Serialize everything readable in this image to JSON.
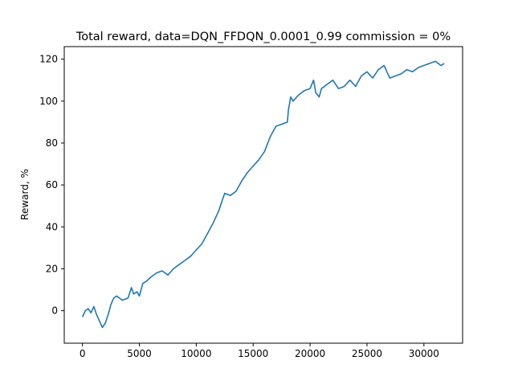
{
  "chart_data": {
    "type": "line",
    "title": "Total reward, data=DQN_FFDQN_0.0001_0.99 commission = 0%",
    "xlabel": "",
    "ylabel": "Reward, %",
    "xlim": [
      -1600,
      33400
    ],
    "ylim": [
      -15.5,
      126
    ],
    "xticks": [
      0,
      5000,
      10000,
      15000,
      20000,
      25000,
      30000
    ],
    "xtick_labels": [
      "0",
      "5000",
      "10000",
      "15000",
      "20000",
      "25000",
      "30000"
    ],
    "yticks": [
      0,
      20,
      40,
      60,
      80,
      100,
      120
    ],
    "ytick_labels": [
      "0",
      "20",
      "40",
      "60",
      "80",
      "100",
      "120"
    ],
    "grid": false,
    "legend": "none",
    "series": [
      {
        "color": "#1f77b4",
        "x": [
          0,
          250,
          500,
          750,
          1000,
          1250,
          1500,
          1750,
          2000,
          2250,
          2500,
          2750,
          3000,
          3500,
          4000,
          4300,
          4500,
          4800,
          5000,
          5300,
          5600,
          6000,
          6500,
          7000,
          7500,
          8000,
          8500,
          9000,
          9500,
          10000,
          10500,
          11000,
          11500,
          12000,
          12300,
          12500,
          13000,
          13500,
          14000,
          14500,
          15000,
          15500,
          16000,
          16500,
          17000,
          17500,
          18000,
          18100,
          18300,
          18500,
          19000,
          19500,
          20000,
          20300,
          20500,
          20800,
          21000,
          21500,
          22000,
          22500,
          23000,
          23500,
          24000,
          24500,
          25000,
          25500,
          26000,
          26500,
          27000,
          27500,
          28000,
          28500,
          29000,
          29500,
          30000,
          30500,
          31000,
          31500,
          31800
        ],
        "y": [
          -3,
          0,
          1,
          -1,
          2,
          -2,
          -5,
          -8,
          -6,
          -2,
          3,
          6,
          7,
          5,
          6,
          11,
          8,
          9,
          7,
          13,
          14,
          16,
          18,
          19,
          17,
          20,
          22,
          24,
          26,
          29,
          32,
          37,
          42,
          48,
          53,
          56,
          55,
          57,
          62,
          66,
          69,
          72,
          76,
          83,
          88,
          89,
          90,
          96,
          102,
          100,
          103,
          105,
          106,
          110,
          104,
          102,
          106,
          108,
          110,
          106,
          107,
          110,
          107,
          112,
          114,
          111,
          115,
          117,
          111,
          112,
          113,
          115,
          114,
          116,
          117,
          118,
          119,
          117,
          118
        ]
      }
    ]
  }
}
